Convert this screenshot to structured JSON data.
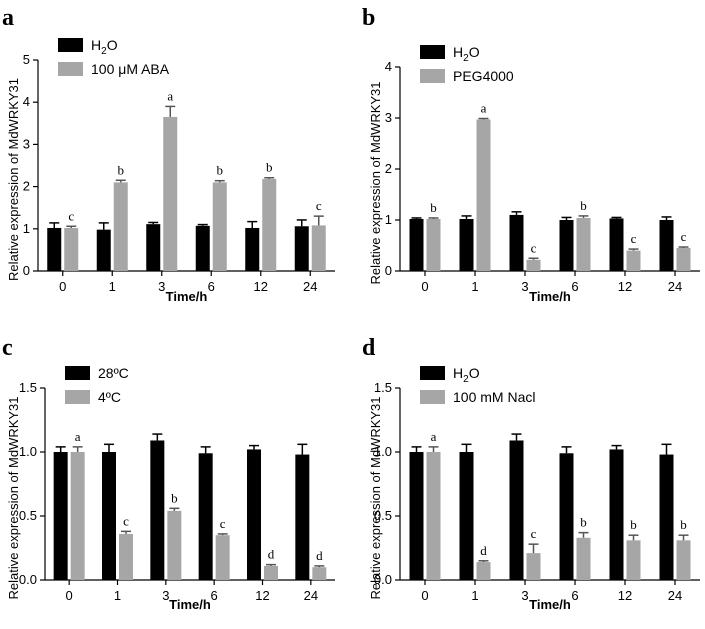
{
  "chart_data": [
    {
      "panel": "a",
      "type": "bar",
      "xlabel": "Time/h",
      "ylabel": "Relative expression of MdWRKY31",
      "ylim": [
        0,
        5
      ],
      "yticks": [
        "0",
        "1",
        "2",
        "3",
        "4",
        "5"
      ],
      "categories": [
        "0",
        "1",
        "3",
        "6",
        "12",
        "24"
      ],
      "legend_position": "top-left",
      "series": [
        {
          "name": "H2O",
          "color": "#000000",
          "values": [
            1.02,
            0.98,
            1.11,
            1.07,
            1.02,
            1.06
          ],
          "errors": [
            0.12,
            0.16,
            0.04,
            0.03,
            0.15,
            0.15
          ]
        },
        {
          "name": "100 μM ABA",
          "color": "#a6a6a6",
          "values": [
            1.02,
            2.1,
            3.65,
            2.1,
            2.18,
            1.08
          ],
          "errors": [
            0.04,
            0.05,
            0.25,
            0.04,
            0.03,
            0.22
          ],
          "letters": [
            "c",
            "b",
            "a",
            "b",
            "b",
            "c"
          ]
        }
      ]
    },
    {
      "panel": "b",
      "type": "bar",
      "xlabel": "Time/h",
      "ylabel": "Relative expression of MdWRKY31",
      "ylim": [
        0,
        4
      ],
      "yticks": [
        "0",
        "1",
        "2",
        "3",
        "4"
      ],
      "categories": [
        "0",
        "1",
        "3",
        "6",
        "12",
        "24"
      ],
      "legend_position": "top-left",
      "series": [
        {
          "name": "H2O",
          "color": "#000000",
          "values": [
            1.02,
            1.02,
            1.1,
            1.0,
            1.03,
            1.0
          ],
          "errors": [
            0.02,
            0.06,
            0.06,
            0.05,
            0.02,
            0.06
          ]
        },
        {
          "name": "PEG4000",
          "color": "#a6a6a6",
          "values": [
            1.02,
            2.97,
            0.22,
            1.04,
            0.4,
            0.45
          ],
          "errors": [
            0.02,
            0.02,
            0.03,
            0.04,
            0.03,
            0.02
          ],
          "letters": [
            "b",
            "a",
            "c",
            "b",
            "c",
            "c"
          ]
        }
      ]
    },
    {
      "panel": "c",
      "type": "bar",
      "xlabel": "Time/h",
      "ylabel": "Relative expression of MdWRKY31",
      "ylim": [
        0,
        1.5
      ],
      "yticks": [
        "0.0",
        "0.5",
        "1.0",
        "1.5"
      ],
      "categories": [
        "0",
        "1",
        "3",
        "6",
        "12",
        "24"
      ],
      "legend_position": "top-left",
      "series": [
        {
          "name": "28ºC",
          "color": "#000000",
          "values": [
            1.0,
            1.0,
            1.09,
            0.99,
            1.02,
            0.98
          ],
          "errors": [
            0.04,
            0.06,
            0.05,
            0.05,
            0.03,
            0.08
          ]
        },
        {
          "name": "4ºC",
          "color": "#a6a6a6",
          "values": [
            1.0,
            0.36,
            0.54,
            0.35,
            0.11,
            0.1
          ],
          "errors": [
            0.04,
            0.02,
            0.02,
            0.01,
            0.01,
            0.01
          ],
          "letters": [
            "a",
            "c",
            "b",
            "c",
            "d",
            "d"
          ]
        }
      ]
    },
    {
      "panel": "d",
      "type": "bar",
      "xlabel": "Time/h",
      "ylabel": "Relative expression of MdWRKY31",
      "ylim": [
        0,
        1.5
      ],
      "yticks": [
        "0.0",
        "0.5",
        "1.0",
        "1.5"
      ],
      "categories": [
        "0",
        "1",
        "3",
        "6",
        "12",
        "24"
      ],
      "legend_position": "top-left",
      "series": [
        {
          "name": "H2O",
          "color": "#000000",
          "values": [
            1.0,
            1.0,
            1.09,
            0.99,
            1.02,
            0.98
          ],
          "errors": [
            0.04,
            0.06,
            0.05,
            0.05,
            0.03,
            0.08
          ]
        },
        {
          "name": "100 mM Nacl",
          "color": "#a6a6a6",
          "values": [
            1.0,
            0.14,
            0.21,
            0.33,
            0.31,
            0.31
          ],
          "errors": [
            0.04,
            0.01,
            0.07,
            0.04,
            0.04,
            0.04
          ],
          "letters": [
            "a",
            "d",
            "c",
            "b",
            "b",
            "b"
          ]
        }
      ]
    }
  ]
}
